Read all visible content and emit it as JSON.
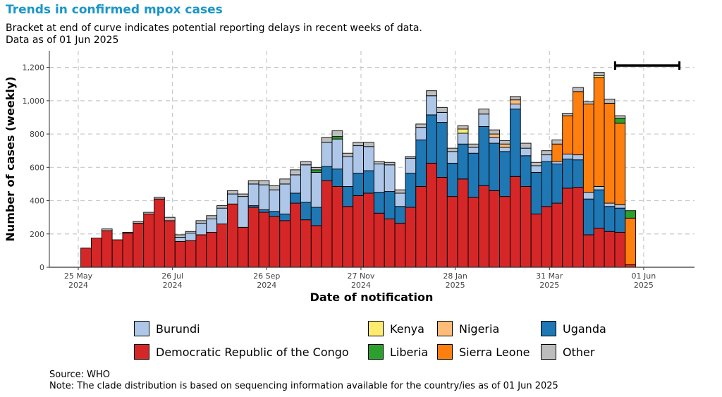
{
  "header": {
    "title": "Trends in confirmed mpox cases",
    "subtitle_line1": "Bracket at end of curve indicates potential reporting delays in recent weeks of data.",
    "subtitle_line2": "Data as of 01 Jun 2025"
  },
  "footer": {
    "source": "Source: WHO",
    "note": "Note: The clade distribution is based on sequencing information available for the country/ies as of 01 Jun 2025"
  },
  "colors": {
    "Democratic Republic of the Congo": "#d62728",
    "Burundi": "#aec7e8",
    "Uganda": "#1f77b4",
    "Kenya": "#ffec6e",
    "Nigeria": "#ffbb78",
    "Liberia": "#2ca02c",
    "Sierra Leone": "#ff7f0e",
    "Other": "#bdbdbd",
    "title": "#1a96c8"
  },
  "legend": [
    {
      "name": "Burundi",
      "icon": "color-swatch"
    },
    {
      "name": "Kenya",
      "icon": "color-swatch"
    },
    {
      "name": "Nigeria",
      "icon": "color-swatch"
    },
    {
      "name": "Uganda",
      "icon": "color-swatch"
    },
    {
      "name": "Democratic Republic of the Congo",
      "icon": "color-swatch"
    },
    {
      "name": "Liberia",
      "icon": "color-swatch"
    },
    {
      "name": "Sierra Leone",
      "icon": "color-swatch"
    },
    {
      "name": "Other",
      "icon": "color-swatch"
    }
  ],
  "chart_data": {
    "type": "bar",
    "stacked": true,
    "xlabel": "Date of notification",
    "ylabel": "Number of cases (weekly)",
    "ylim": [
      0,
      1300
    ],
    "yticks": [
      0,
      200,
      400,
      600,
      800,
      1000,
      1200
    ],
    "ytick_labels": [
      "0",
      "200",
      "400",
      "600",
      "800",
      "1,000",
      "1,200"
    ],
    "xticks": [
      {
        "week_index": 0,
        "line1": "25 May",
        "line2": "2024"
      },
      {
        "week_index": 9,
        "line1": "26 Jul",
        "line2": "2024"
      },
      {
        "week_index": 18,
        "line1": "26 Sep",
        "line2": "2024"
      },
      {
        "week_index": 27,
        "line1": "27 Nov",
        "line2": "2024"
      },
      {
        "week_index": 36,
        "line1": "28 Jan",
        "line2": "2025"
      },
      {
        "week_index": 45,
        "line1": "31 Mar",
        "line2": "2025"
      },
      {
        "week_index": 54,
        "line1": "01 Jun",
        "line2": "2025"
      }
    ],
    "grid": true,
    "legend_position": "bottom",
    "delay_bracket": {
      "from_week_index": 51,
      "to_week_index": 56
    },
    "series": [
      {
        "name": "Democratic Republic of the Congo",
        "values": [
          115,
          175,
          220,
          165,
          205,
          265,
          320,
          410,
          280,
          155,
          160,
          195,
          210,
          260,
          380,
          240,
          360,
          330,
          305,
          280,
          385,
          285,
          250,
          520,
          485,
          365,
          430,
          445,
          325,
          290,
          265,
          360,
          485,
          625,
          540,
          425,
          530,
          420,
          490,
          460,
          425,
          545,
          485,
          320,
          365,
          385,
          475,
          480,
          195,
          235,
          215,
          210,
          15,
          0
        ]
      },
      {
        "name": "Uganda",
        "values": [
          0,
          0,
          0,
          0,
          0,
          0,
          0,
          0,
          0,
          0,
          0,
          0,
          0,
          0,
          0,
          0,
          10,
          15,
          30,
          40,
          60,
          105,
          110,
          85,
          105,
          120,
          135,
          135,
          125,
          165,
          100,
          205,
          280,
          290,
          330,
          200,
          210,
          265,
          355,
          285,
          270,
          405,
          185,
          250,
          270,
          235,
          175,
          165,
          215,
          230,
          150,
          145,
          0,
          0
        ]
      },
      {
        "name": "Burundi",
        "values": [
          0,
          0,
          0,
          0,
          0,
          0,
          0,
          0,
          0,
          25,
          45,
          70,
          80,
          95,
          60,
          185,
          130,
          150,
          130,
          180,
          110,
          225,
          210,
          145,
          180,
          180,
          165,
          145,
          170,
          160,
          80,
          90,
          75,
          115,
          60,
          70,
          65,
          35,
          75,
          35,
          25,
          30,
          45,
          40,
          40,
          15,
          30,
          30,
          40,
          20,
          20,
          20,
          0,
          0
        ]
      },
      {
        "name": "Sierra Leone",
        "values": [
          0,
          0,
          0,
          0,
          0,
          0,
          0,
          0,
          0,
          0,
          0,
          0,
          0,
          0,
          0,
          0,
          0,
          0,
          0,
          0,
          0,
          0,
          0,
          0,
          0,
          0,
          0,
          0,
          0,
          0,
          0,
          0,
          0,
          0,
          0,
          0,
          0,
          0,
          0,
          0,
          0,
          0,
          0,
          0,
          0,
          105,
          230,
          380,
          530,
          655,
          600,
          490,
          280,
          0
        ]
      },
      {
        "name": "Nigeria",
        "values": [
          0,
          0,
          0,
          0,
          0,
          0,
          0,
          0,
          0,
          0,
          0,
          0,
          0,
          0,
          0,
          0,
          0,
          0,
          0,
          0,
          0,
          0,
          0,
          0,
          0,
          0,
          0,
          0,
          0,
          0,
          0,
          0,
          0,
          0,
          0,
          0,
          0,
          0,
          0,
          20,
          20,
          25,
          0,
          0,
          0,
          0,
          0,
          0,
          0,
          0,
          0,
          0,
          0,
          0
        ]
      },
      {
        "name": "Kenya",
        "values": [
          0,
          0,
          0,
          0,
          0,
          0,
          0,
          0,
          0,
          0,
          0,
          0,
          0,
          0,
          0,
          0,
          0,
          0,
          0,
          0,
          0,
          0,
          0,
          0,
          0,
          0,
          0,
          0,
          0,
          0,
          0,
          0,
          0,
          0,
          0,
          0,
          25,
          0,
          0,
          0,
          0,
          0,
          0,
          0,
          0,
          0,
          0,
          0,
          0,
          10,
          0,
          0,
          0,
          0
        ]
      },
      {
        "name": "Liberia",
        "values": [
          0,
          0,
          0,
          0,
          0,
          0,
          0,
          0,
          0,
          0,
          0,
          0,
          0,
          0,
          0,
          0,
          0,
          0,
          0,
          0,
          0,
          0,
          15,
          0,
          15,
          0,
          0,
          0,
          0,
          0,
          0,
          0,
          0,
          0,
          0,
          0,
          0,
          0,
          0,
          0,
          0,
          0,
          0,
          0,
          0,
          0,
          0,
          0,
          0,
          0,
          0,
          30,
          45,
          0
        ]
      },
      {
        "name": "Other",
        "values": [
          0,
          0,
          10,
          0,
          5,
          10,
          10,
          10,
          20,
          15,
          10,
          15,
          20,
          15,
          20,
          15,
          20,
          25,
          25,
          30,
          30,
          20,
          15,
          30,
          35,
          20,
          20,
          25,
          15,
          15,
          20,
          10,
          20,
          30,
          30,
          20,
          20,
          20,
          30,
          25,
          20,
          20,
          30,
          20,
          25,
          25,
          15,
          25,
          15,
          20,
          25,
          15,
          0,
          0
        ]
      }
    ],
    "annotations": []
  }
}
